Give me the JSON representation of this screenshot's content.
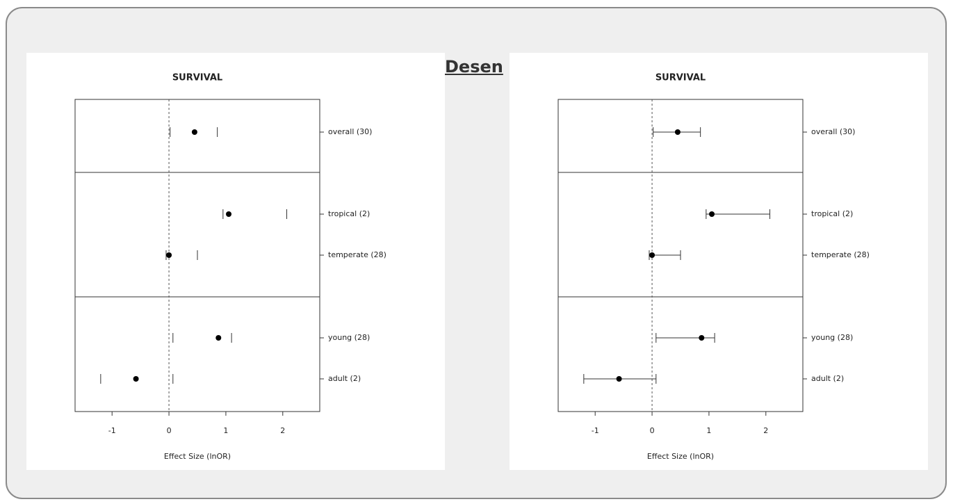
{
  "link": "Desen",
  "chart_data": [
    {
      "type": "forest",
      "title": "SURVIVAL",
      "x_label": "Effect Size (lnOR)",
      "categories": [
        "overall (30)",
        "tropical (2)",
        "temperate (28)",
        "young (28)",
        "adult (2)"
      ],
      "values": [
        0.45,
        1.05,
        0.0,
        0.87,
        -0.58
      ],
      "lower": [
        0.02,
        0.95,
        -0.05,
        0.07,
        -1.2
      ],
      "upper": [
        0.85,
        2.07,
        0.5,
        1.1,
        0.07
      ],
      "error_bar_line": false,
      "reference_line": 0,
      "xlim": [
        -1.65,
        2.65
      ],
      "xticks": [
        -1,
        0,
        1,
        2
      ],
      "color": "#000000"
    },
    {
      "type": "forest",
      "title": "SURVIVAL",
      "x_label": "Effect Size (lnOR)",
      "categories": [
        "overall (30)",
        "tropical (2)",
        "temperate (28)",
        "young (28)",
        "adult (2)"
      ],
      "values": [
        0.45,
        1.05,
        0.0,
        0.87,
        -0.58
      ],
      "lower": [
        0.02,
        0.95,
        -0.05,
        0.07,
        -1.2
      ],
      "upper": [
        0.85,
        2.07,
        0.5,
        1.1,
        0.07
      ],
      "error_bar_line": true,
      "reference_line": 0,
      "xlim": [
        -1.65,
        2.65
      ],
      "xticks": [
        -1,
        0,
        1,
        2
      ],
      "color": "#000000"
    }
  ]
}
